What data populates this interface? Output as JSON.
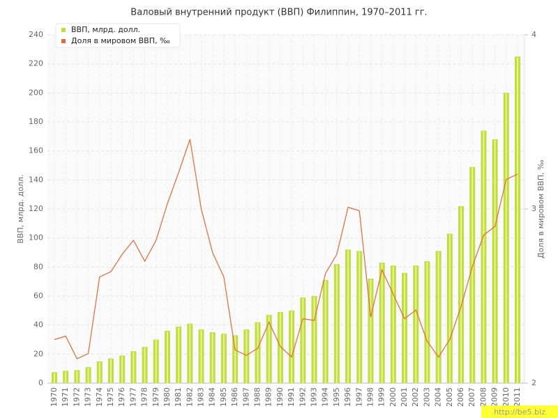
{
  "chart_data": {
    "type": "bar-line",
    "title": "Валовый внутренний продукт (ВВП) Филиппин, 1970–2011 гг.",
    "y_label": "ВВП, млрд. долл.",
    "y2_label": "Доля в мировом ВВП, ‰",
    "categories": [
      "1970",
      "1971",
      "1972",
      "1973",
      "1974",
      "1975",
      "1976",
      "1977",
      "1978",
      "1979",
      "1980",
      "1981",
      "1982",
      "1983",
      "1984",
      "1985",
      "1986",
      "1987",
      "1988",
      "1989",
      "1990",
      "1991",
      "1992",
      "1993",
      "1994",
      "1995",
      "1996",
      "1997",
      "1998",
      "1999",
      "2000",
      "2001",
      "2002",
      "2003",
      "2004",
      "2005",
      "2006",
      "2007",
      "2008",
      "2009",
      "2010",
      "2011"
    ],
    "series": [
      {
        "name": "ВВП, млрд. долл.",
        "color": "#c2dd3e",
        "type": "bar",
        "values": [
          7.5,
          8.5,
          9,
          11,
          15,
          17,
          19,
          22,
          25,
          30,
          36,
          39,
          41,
          37,
          35,
          34,
          33,
          37,
          42,
          47,
          49,
          50,
          59,
          60,
          71,
          82,
          92,
          91,
          72,
          83,
          81,
          76,
          81,
          84,
          91,
          103,
          122,
          149,
          174,
          168,
          200,
          225
        ]
      },
      {
        "name": "Доля в мировом ВВП, ‰",
        "color": "#e0693a",
        "type": "line",
        "axis": "y2",
        "values": [
          2.25,
          2.27,
          2.14,
          2.17,
          2.61,
          2.64,
          2.74,
          2.82,
          2.7,
          2.82,
          3.03,
          3.21,
          3.4,
          3.0,
          2.75,
          2.61,
          2.19,
          2.16,
          2.2,
          2.35,
          2.21,
          2.15,
          2.37,
          2.36,
          2.63,
          2.74,
          3.01,
          2.99,
          2.38,
          2.65,
          2.51,
          2.37,
          2.42,
          2.24,
          2.15,
          2.25,
          2.44,
          2.67,
          2.85,
          2.9,
          3.17,
          3.2
        ]
      }
    ],
    "ylim": [
      0,
      240
    ],
    "yticks": [
      0,
      20,
      40,
      60,
      80,
      100,
      120,
      140,
      160,
      180,
      200,
      220,
      240
    ],
    "y2lim": [
      2,
      4
    ],
    "y2ticks": [
      2,
      3,
      4
    ],
    "grid": true,
    "legend": "top-left",
    "watermark": "http://be5.biz"
  }
}
